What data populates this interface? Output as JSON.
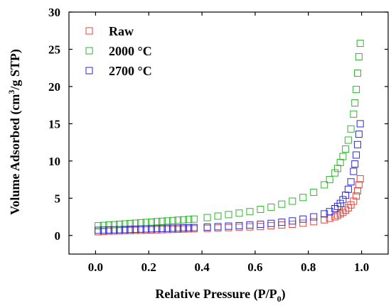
{
  "chart_data": {
    "type": "scatter",
    "xlabel_main": "Relative Pressure (P/P",
    "xlabel_sub": "0",
    "xlabel_end": ")",
    "ylabel_main": "Volume Adsorbed (cm",
    "ylabel_sup": "3",
    "ylabel_end": "/g STP)",
    "xlim": [
      -0.1,
      1.1
    ],
    "ylim": [
      -2.5,
      30
    ],
    "xticks": [
      "0.0",
      "0.2",
      "0.4",
      "0.6",
      "0.8",
      "1.0"
    ],
    "yticks": [
      "0",
      "5",
      "10",
      "15",
      "20",
      "25",
      "30"
    ],
    "legend_position": "top-left",
    "grid": false,
    "series": [
      {
        "name": "Raw",
        "color": "#e0453a",
        "x": [
          0.01,
          0.03,
          0.05,
          0.07,
          0.09,
          0.11,
          0.13,
          0.15,
          0.17,
          0.19,
          0.21,
          0.23,
          0.25,
          0.27,
          0.29,
          0.31,
          0.33,
          0.35,
          0.37,
          0.42,
          0.46,
          0.5,
          0.54,
          0.58,
          0.62,
          0.66,
          0.7,
          0.74,
          0.78,
          0.82,
          0.86,
          0.88,
          0.9,
          0.91,
          0.92,
          0.93,
          0.94,
          0.95,
          0.96,
          0.97,
          0.98,
          0.985,
          0.99,
          0.995
        ],
        "y": [
          0.5,
          0.55,
          0.58,
          0.6,
          0.62,
          0.64,
          0.66,
          0.68,
          0.7,
          0.72,
          0.74,
          0.76,
          0.78,
          0.8,
          0.82,
          0.84,
          0.86,
          0.88,
          0.9,
          0.95,
          1.0,
          1.05,
          1.1,
          1.15,
          1.2,
          1.3,
          1.4,
          1.5,
          1.65,
          1.85,
          2.1,
          2.3,
          2.5,
          2.7,
          2.9,
          3.1,
          3.4,
          3.7,
          4.1,
          4.6,
          5.3,
          6.0,
          6.8,
          7.6
        ]
      },
      {
        "name": "2000 °C",
        "color": "#2fb52f",
        "x": [
          0.01,
          0.03,
          0.05,
          0.07,
          0.09,
          0.11,
          0.13,
          0.15,
          0.17,
          0.19,
          0.21,
          0.23,
          0.25,
          0.27,
          0.29,
          0.31,
          0.33,
          0.35,
          0.37,
          0.42,
          0.46,
          0.5,
          0.54,
          0.58,
          0.62,
          0.66,
          0.7,
          0.74,
          0.78,
          0.82,
          0.86,
          0.88,
          0.9,
          0.91,
          0.92,
          0.93,
          0.94,
          0.95,
          0.96,
          0.97,
          0.975,
          0.98,
          0.985,
          0.99,
          0.995
        ],
        "y": [
          1.3,
          1.35,
          1.4,
          1.45,
          1.5,
          1.55,
          1.6,
          1.65,
          1.7,
          1.75,
          1.8,
          1.85,
          1.9,
          1.95,
          2.0,
          2.05,
          2.1,
          2.15,
          2.2,
          2.4,
          2.6,
          2.8,
          3.0,
          3.2,
          3.5,
          3.8,
          4.2,
          4.6,
          5.1,
          5.8,
          6.8,
          7.5,
          8.4,
          9.0,
          9.8,
          10.6,
          11.6,
          12.8,
          14.3,
          16.3,
          17.8,
          19.6,
          21.8,
          24.0,
          25.8
        ]
      },
      {
        "name": "2700 °C",
        "color": "#2a2ad6",
        "x": [
          0.01,
          0.03,
          0.05,
          0.07,
          0.09,
          0.11,
          0.13,
          0.15,
          0.17,
          0.19,
          0.21,
          0.23,
          0.25,
          0.27,
          0.29,
          0.31,
          0.33,
          0.35,
          0.37,
          0.42,
          0.46,
          0.5,
          0.54,
          0.58,
          0.62,
          0.66,
          0.7,
          0.74,
          0.78,
          0.82,
          0.86,
          0.88,
          0.9,
          0.91,
          0.92,
          0.93,
          0.94,
          0.95,
          0.96,
          0.97,
          0.975,
          0.98,
          0.985,
          0.99,
          0.995
        ],
        "y": [
          0.7,
          0.72,
          0.74,
          0.76,
          0.78,
          0.8,
          0.82,
          0.84,
          0.86,
          0.88,
          0.9,
          0.92,
          0.94,
          0.96,
          0.98,
          1.0,
          1.02,
          1.04,
          1.06,
          1.12,
          1.18,
          1.25,
          1.32,
          1.4,
          1.5,
          1.62,
          1.78,
          1.95,
          2.2,
          2.5,
          2.9,
          3.2,
          3.6,
          3.9,
          4.3,
          4.8,
          5.4,
          6.2,
          7.2,
          8.6,
          9.6,
          10.8,
          12.2,
          13.6,
          15.0
        ]
      }
    ]
  }
}
